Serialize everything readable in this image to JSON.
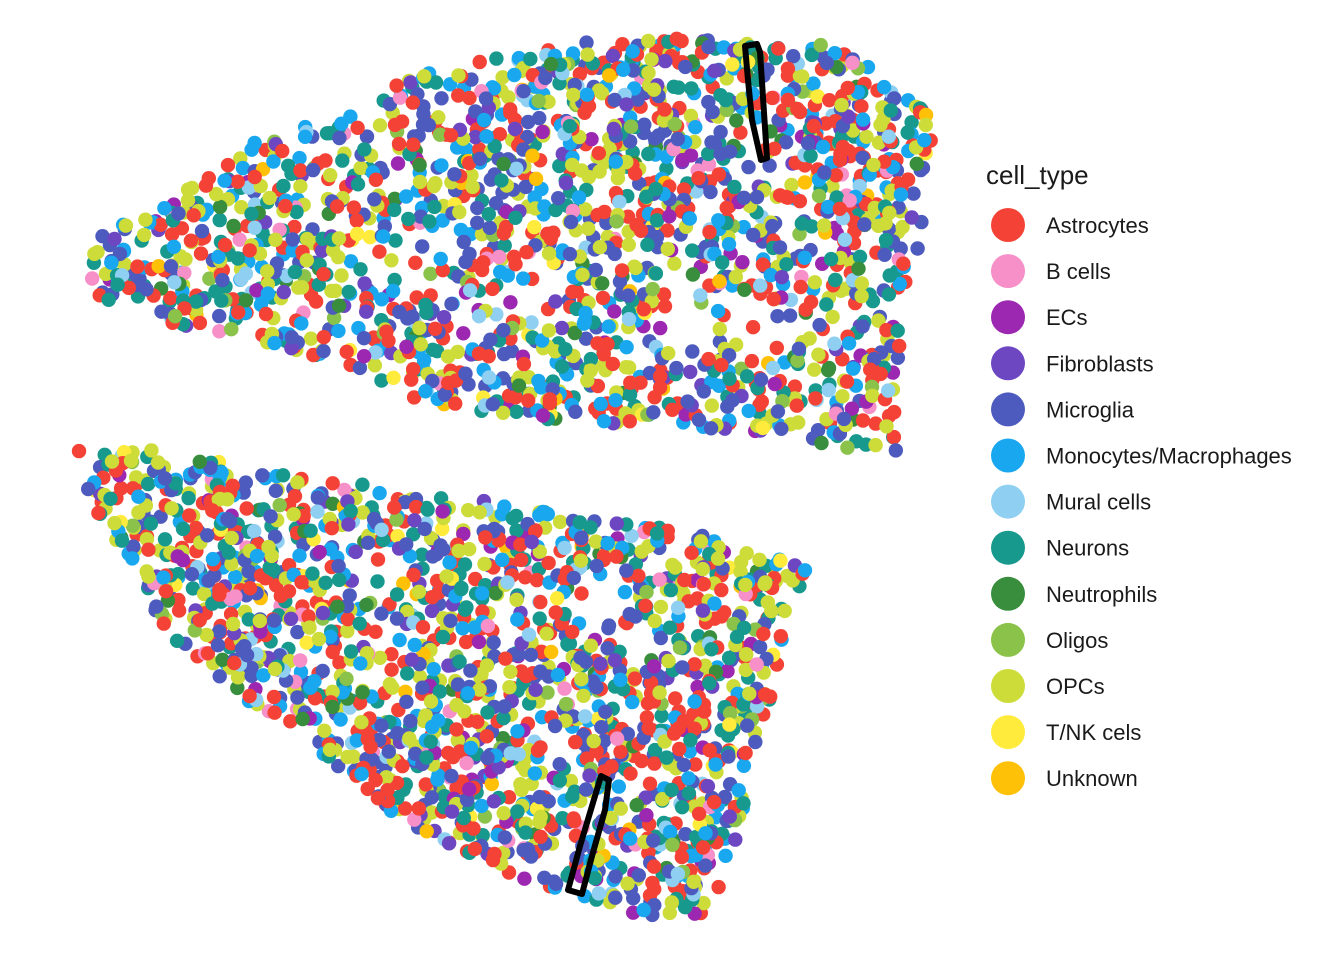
{
  "chart_data": {
    "type": "scatter",
    "title": "",
    "xlabel": "",
    "ylabel": "",
    "grid": false,
    "legend": {
      "title": "cell_type",
      "placement": "right",
      "entries": [
        {
          "name": "Astrocytes",
          "color": "#F44336"
        },
        {
          "name": "B cells",
          "color": "#F78FC8"
        },
        {
          "name": "ECs",
          "color": "#9C27B0"
        },
        {
          "name": "Fibroblasts",
          "color": "#6D46C2"
        },
        {
          "name": "Microglia",
          "color": "#4E5BBE"
        },
        {
          "name": "Monocytes/Macrophages",
          "color": "#19A8F0"
        },
        {
          "name": "Mural cells",
          "color": "#8ECFF2"
        },
        {
          "name": "Neurons",
          "color": "#17998E"
        },
        {
          "name": "Neutrophils",
          "color": "#388E3C"
        },
        {
          "name": "Oligos",
          "color": "#8BC34A"
        },
        {
          "name": "OPCs",
          "color": "#CDDC39"
        },
        {
          "name": "T/NK cels",
          "color": "#FFEB3B"
        },
        {
          "name": "Unknown",
          "color": "#FFC107"
        }
      ]
    },
    "category_weights": [
      20,
      2,
      3,
      3,
      16,
      11,
      3,
      13,
      2,
      2,
      18,
      1,
      1
    ]
  }
}
